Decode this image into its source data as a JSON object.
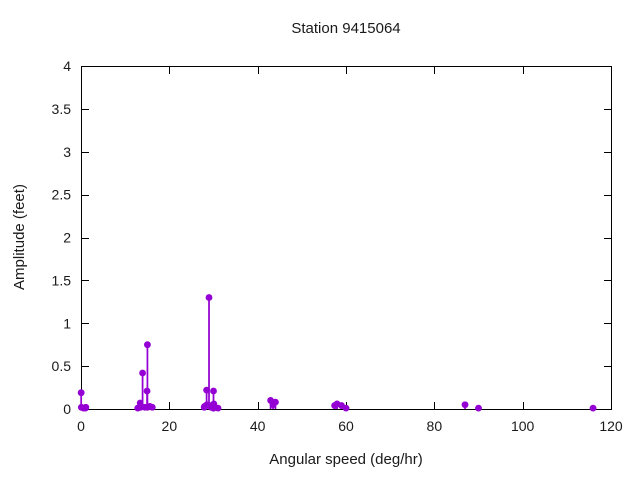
{
  "colors": {
    "background": "#ffffff",
    "axis": "#000000",
    "text": "#1a1a1a",
    "point": "#9400d3"
  },
  "chart_data": {
    "type": "stem",
    "title": "Station 9415064",
    "xlabel": "Angular speed (deg/hr)",
    "ylabel": "Amplitude (feet)",
    "xlim": [
      0,
      120
    ],
    "ylim": [
      0,
      4
    ],
    "xticks": [
      0,
      20,
      40,
      60,
      80,
      100,
      120
    ],
    "x_tick_labels": [
      "0",
      "20",
      "40",
      "60",
      "80",
      "100",
      "120"
    ],
    "yticks": [
      0,
      0.5,
      1,
      1.5,
      2,
      2.5,
      3,
      3.5,
      4
    ],
    "y_tick_labels": [
      "0",
      "0.5",
      "1",
      "1.5",
      "2",
      "2.5",
      "3",
      "3.5",
      "4"
    ],
    "grid": false,
    "legend": "none",
    "marker": "filled-circle",
    "points": [
      {
        "x": 0.041,
        "y": 0.19
      },
      {
        "x": 0.082,
        "y": 0.02
      },
      {
        "x": 0.544,
        "y": 0.01
      },
      {
        "x": 1.016,
        "y": 0.01
      },
      {
        "x": 1.098,
        "y": 0.02
      },
      {
        "x": 12.854,
        "y": 0.01
      },
      {
        "x": 13.399,
        "y": 0.07
      },
      {
        "x": 13.471,
        "y": 0.02
      },
      {
        "x": 13.943,
        "y": 0.42
      },
      {
        "x": 14.497,
        "y": 0.02
      },
      {
        "x": 14.959,
        "y": 0.21
      },
      {
        "x": 15.0,
        "y": 0.02
      },
      {
        "x": 15.041,
        "y": 0.75
      },
      {
        "x": 15.585,
        "y": 0.03
      },
      {
        "x": 16.139,
        "y": 0.02
      },
      {
        "x": 27.895,
        "y": 0.02
      },
      {
        "x": 27.968,
        "y": 0.03
      },
      {
        "x": 28.44,
        "y": 0.22
      },
      {
        "x": 28.513,
        "y": 0.05
      },
      {
        "x": 28.984,
        "y": 1.3
      },
      {
        "x": 29.456,
        "y": 0.02
      },
      {
        "x": 29.528,
        "y": 0.04
      },
      {
        "x": 29.959,
        "y": 0.01
      },
      {
        "x": 30.0,
        "y": 0.21
      },
      {
        "x": 30.041,
        "y": 0.01
      },
      {
        "x": 30.082,
        "y": 0.06
      },
      {
        "x": 31.016,
        "y": 0.01
      },
      {
        "x": 42.927,
        "y": 0.1
      },
      {
        "x": 43.476,
        "y": 0.05
      },
      {
        "x": 44.025,
        "y": 0.08
      },
      {
        "x": 57.424,
        "y": 0.04
      },
      {
        "x": 57.968,
        "y": 0.06
      },
      {
        "x": 58.984,
        "y": 0.04
      },
      {
        "x": 60.0,
        "y": 0.01
      },
      {
        "x": 86.952,
        "y": 0.05
      },
      {
        "x": 90.0,
        "y": 0.01
      },
      {
        "x": 115.936,
        "y": 0.01
      }
    ]
  }
}
